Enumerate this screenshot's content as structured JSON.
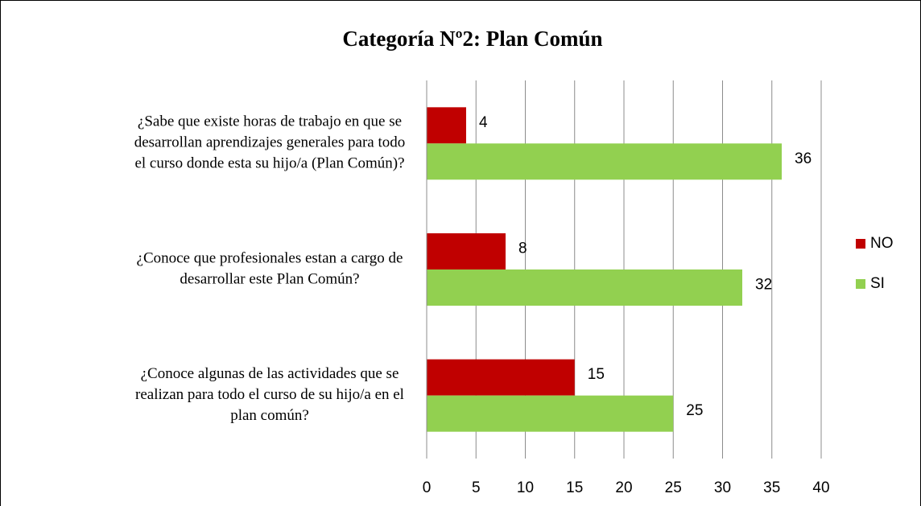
{
  "chart_data": {
    "type": "bar",
    "orientation": "horizontal",
    "title": "Categoría Nº2: Plan Común",
    "categories": [
      [
        "¿Sabe que existe horas de trabajo en que se",
        "desarrollan aprendizajes generales para  todo",
        "el curso donde esta su hijo/a  (Plan Común)?"
      ],
      [
        "¿Conoce que profesionales estan  a cargo  de",
        "desarrollar este Plan Común?"
      ],
      [
        "¿Conoce algunas de las  actividades que se",
        "realizan para todo el curso de su hijo/a en el",
        "plan común?"
      ]
    ],
    "series": [
      {
        "name": "NO",
        "color": "#c00000",
        "values": [
          4,
          8,
          15
        ]
      },
      {
        "name": "SI",
        "color": "#92d050",
        "values": [
          36,
          32,
          25
        ]
      }
    ],
    "xlim": [
      0,
      40
    ],
    "xticks": [
      0,
      5,
      10,
      15,
      20,
      25,
      30,
      35,
      40
    ],
    "grid": true,
    "legend": "right"
  }
}
